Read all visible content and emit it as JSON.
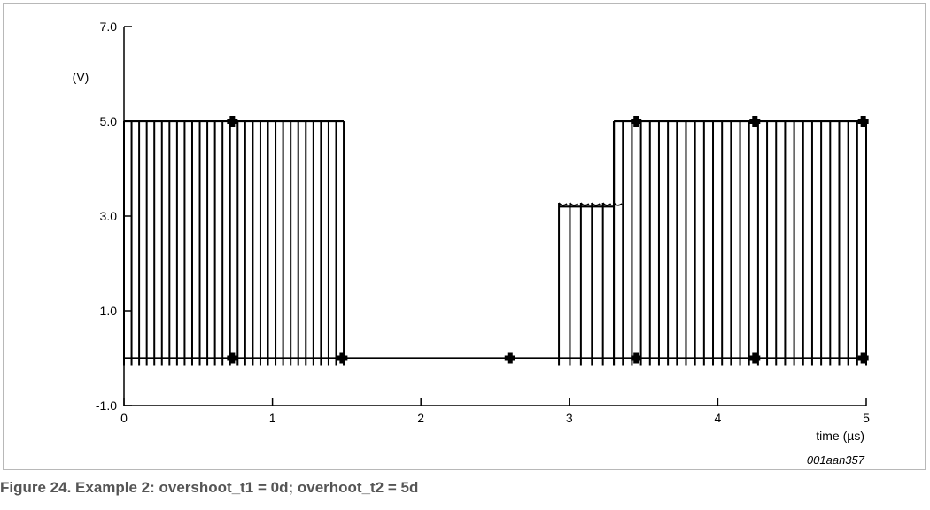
{
  "chart_data": {
    "type": "line",
    "title": "",
    "xlabel": "time (µs)",
    "ylabel": "(V)",
    "xlim": [
      0,
      5
    ],
    "ylim": [
      -1.0,
      7.0
    ],
    "xticks": [
      0,
      1,
      2,
      3,
      4,
      5
    ],
    "xtick_labels": [
      "0",
      "1",
      "2",
      "3",
      "4",
      "5"
    ],
    "yticks": [
      -1.0,
      1.0,
      3.0,
      5.0,
      7.0
    ],
    "ytick_labels": [
      "-1.0",
      "1.0",
      "3.0",
      "5.0",
      "7.0"
    ],
    "grid": false,
    "legend": "none",
    "line_color": "#000000",
    "series": [
      {
        "segments": [
          {
            "x": [
              0.0,
              1.48
            ],
            "y": [
              5.0,
              5.0
            ]
          },
          {
            "x": [
              0.0,
              5.0
            ],
            "y": [
              0.0,
              0.0
            ]
          },
          {
            "x": [
              2.93,
              3.3
            ],
            "y": [
              3.2,
              3.2
            ]
          },
          {
            "x": [
              3.3,
              3.3
            ],
            "y": [
              3.2,
              5.0
            ]
          },
          {
            "x": [
              3.3,
              5.0
            ],
            "y": [
              5.0,
              5.0
            ]
          }
        ],
        "bursts": [
          {
            "x_start": 0.0,
            "x_end": 1.48,
            "high": 5.0,
            "low": -0.15,
            "count": 30
          },
          {
            "x_start": 2.93,
            "x_end": 3.3,
            "high": 3.28,
            "low": -0.15,
            "count": 6
          },
          {
            "x_start": 3.3,
            "x_end": 5.0,
            "high": 5.0,
            "low": -0.15,
            "count": 29
          }
        ],
        "markers": [
          {
            "x": 0.73,
            "y": 5.0
          },
          {
            "x": 0.73,
            "y": 0.0
          },
          {
            "x": 1.47,
            "y": 0.0
          },
          {
            "x": 2.6,
            "y": 0.0
          },
          {
            "x": 3.45,
            "y": 5.0
          },
          {
            "x": 3.45,
            "y": 0.0
          },
          {
            "x": 4.25,
            "y": 5.0
          },
          {
            "x": 4.25,
            "y": 0.0
          },
          {
            "x": 4.98,
            "y": 5.0
          },
          {
            "x": 4.98,
            "y": 0.0
          }
        ]
      }
    ],
    "annotations": [
      "001aan357"
    ]
  },
  "caption": "Figure 24.  Example 2: overshoot_t1 = 0d; overhoot_t2 = 5d"
}
